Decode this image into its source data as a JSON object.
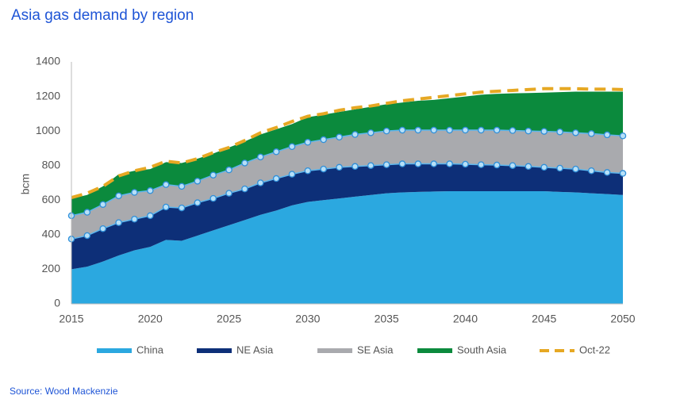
{
  "chart_data": {
    "type": "stacked_area",
    "title": "Asia gas demand by region",
    "y_label": "bcm",
    "source": "Source: Wood Mackenzie",
    "x": [
      2015,
      2016,
      2017,
      2018,
      2019,
      2020,
      2021,
      2022,
      2023,
      2024,
      2025,
      2026,
      2027,
      2028,
      2029,
      2030,
      2031,
      2032,
      2033,
      2034,
      2035,
      2036,
      2037,
      2038,
      2039,
      2040,
      2041,
      2042,
      2043,
      2044,
      2045,
      2046,
      2047,
      2048,
      2049,
      2050
    ],
    "xlim": [
      2015,
      2050
    ],
    "xticks": [
      2015,
      2020,
      2025,
      2030,
      2035,
      2040,
      2045,
      2050
    ],
    "ylim": [
      0,
      1400
    ],
    "yticks": [
      0,
      200,
      400,
      600,
      800,
      1000,
      1200,
      1400
    ],
    "legend": "bottom",
    "series": [
      {
        "name": "China",
        "color": "#2ba8e0",
        "markers": false,
        "values": [
          200,
          215,
          245,
          280,
          310,
          330,
          370,
          365,
          395,
          425,
          455,
          485,
          515,
          540,
          570,
          590,
          600,
          610,
          620,
          630,
          640,
          645,
          648,
          650,
          652,
          652,
          652,
          652,
          652,
          652,
          652,
          648,
          645,
          640,
          635,
          630
        ]
      },
      {
        "name": "NE Asia",
        "color": "#0d2f78",
        "markers": true,
        "values": [
          175,
          180,
          190,
          190,
          180,
          180,
          190,
          190,
          190,
          185,
          185,
          180,
          185,
          185,
          180,
          180,
          180,
          180,
          175,
          170,
          165,
          165,
          162,
          160,
          158,
          156,
          153,
          151,
          148,
          143,
          138,
          137,
          135,
          130,
          125,
          125
        ]
      },
      {
        "name": "SE Asia",
        "color": "#a9aaae",
        "markers": true,
        "values": [
          135,
          135,
          140,
          155,
          155,
          145,
          130,
          125,
          125,
          135,
          135,
          150,
          150,
          155,
          160,
          165,
          170,
          175,
          185,
          190,
          195,
          195,
          195,
          195,
          195,
          197,
          200,
          202,
          203,
          205,
          208,
          210,
          210,
          215,
          218,
          217
        ]
      },
      {
        "name": "South Asia",
        "color": "#0b8a3d",
        "markers": false,
        "values": [
          100,
          100,
          105,
          125,
          125,
          125,
          130,
          135,
          130,
          125,
          130,
          125,
          130,
          130,
          130,
          145,
          145,
          145,
          145,
          150,
          155,
          160,
          170,
          175,
          185,
          195,
          205,
          210,
          215,
          220,
          224,
          230,
          238,
          243,
          250,
          256
        ]
      },
      {
        "name": "Oct-22",
        "color": "#e6a823",
        "type": "line",
        "dashed": true,
        "values": [
          615,
          640,
          680,
          740,
          770,
          790,
          825,
          815,
          840,
          875,
          905,
          945,
          990,
          1020,
          1055,
          1085,
          1100,
          1120,
          1135,
          1145,
          1160,
          1175,
          1185,
          1195,
          1205,
          1215,
          1225,
          1230,
          1235,
          1240,
          1245,
          1245,
          1245,
          1242,
          1242,
          1240
        ]
      }
    ]
  }
}
